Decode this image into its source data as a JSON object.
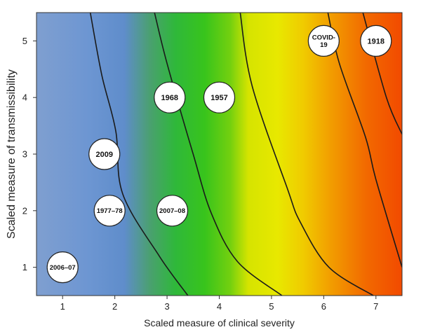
{
  "chart_data": {
    "type": "scatter",
    "xlabel": "Scaled measure of clinical severity",
    "ylabel": "Scaled measure of transmissibility",
    "xlim": [
      0.5,
      7.5
    ],
    "ylim": [
      0.5,
      5.5
    ],
    "x_ticks": [
      "1",
      "2",
      "3",
      "4",
      "5",
      "6",
      "7"
    ],
    "y_ticks": [
      "1",
      "2",
      "3",
      "4",
      "5"
    ],
    "grid": false,
    "background": "color gradient from blue (low severity) through green and yellow to red-orange (high severity), divided by curved category boundaries",
    "colors": {
      "low": "#7f9fd0",
      "mid": "#33c21a",
      "high_mid": "#e6ea00",
      "high": "#f24a00"
    },
    "points": [
      {
        "label": "2006–07",
        "x": 1.0,
        "y": 1.0
      },
      {
        "label": "1977–78",
        "x": 1.9,
        "y": 2.0
      },
      {
        "label": "2009",
        "x": 1.8,
        "y": 3.0
      },
      {
        "label": "2007–08",
        "x": 3.1,
        "y": 2.0
      },
      {
        "label": "1968",
        "x": 3.05,
        "y": 4.0
      },
      {
        "label": "1957",
        "x": 4.0,
        "y": 4.0
      },
      {
        "label": "COVID-19",
        "x": 6.0,
        "y": 5.0
      },
      {
        "label": "1918",
        "x": 7.0,
        "y": 5.0
      }
    ],
    "boundaries": [
      [
        [
          1.53,
          5.5
        ],
        [
          1.75,
          4.4
        ],
        [
          2.02,
          3.4
        ],
        [
          2.15,
          2.3
        ],
        [
          2.85,
          1.2
        ],
        [
          3.4,
          0.5
        ]
      ],
      [
        [
          2.76,
          5.5
        ],
        [
          3.0,
          4.6
        ],
        [
          3.5,
          3.0
        ],
        [
          3.85,
          1.95
        ],
        [
          4.35,
          1.1
        ],
        [
          5.2,
          0.5
        ]
      ],
      [
        [
          4.4,
          5.5
        ],
        [
          4.63,
          4.2
        ],
        [
          5.3,
          2.4
        ],
        [
          5.55,
          1.8
        ],
        [
          6.1,
          1.0
        ],
        [
          6.95,
          0.5
        ]
      ],
      [
        [
          6.08,
          5.5
        ],
        [
          6.3,
          4.6
        ],
        [
          6.8,
          3.3
        ],
        [
          7.0,
          2.55
        ],
        [
          7.5,
          1.0
        ]
      ],
      [
        [
          6.75,
          5.5
        ],
        [
          7.2,
          4.0
        ],
        [
          7.5,
          3.35
        ]
      ]
    ]
  }
}
